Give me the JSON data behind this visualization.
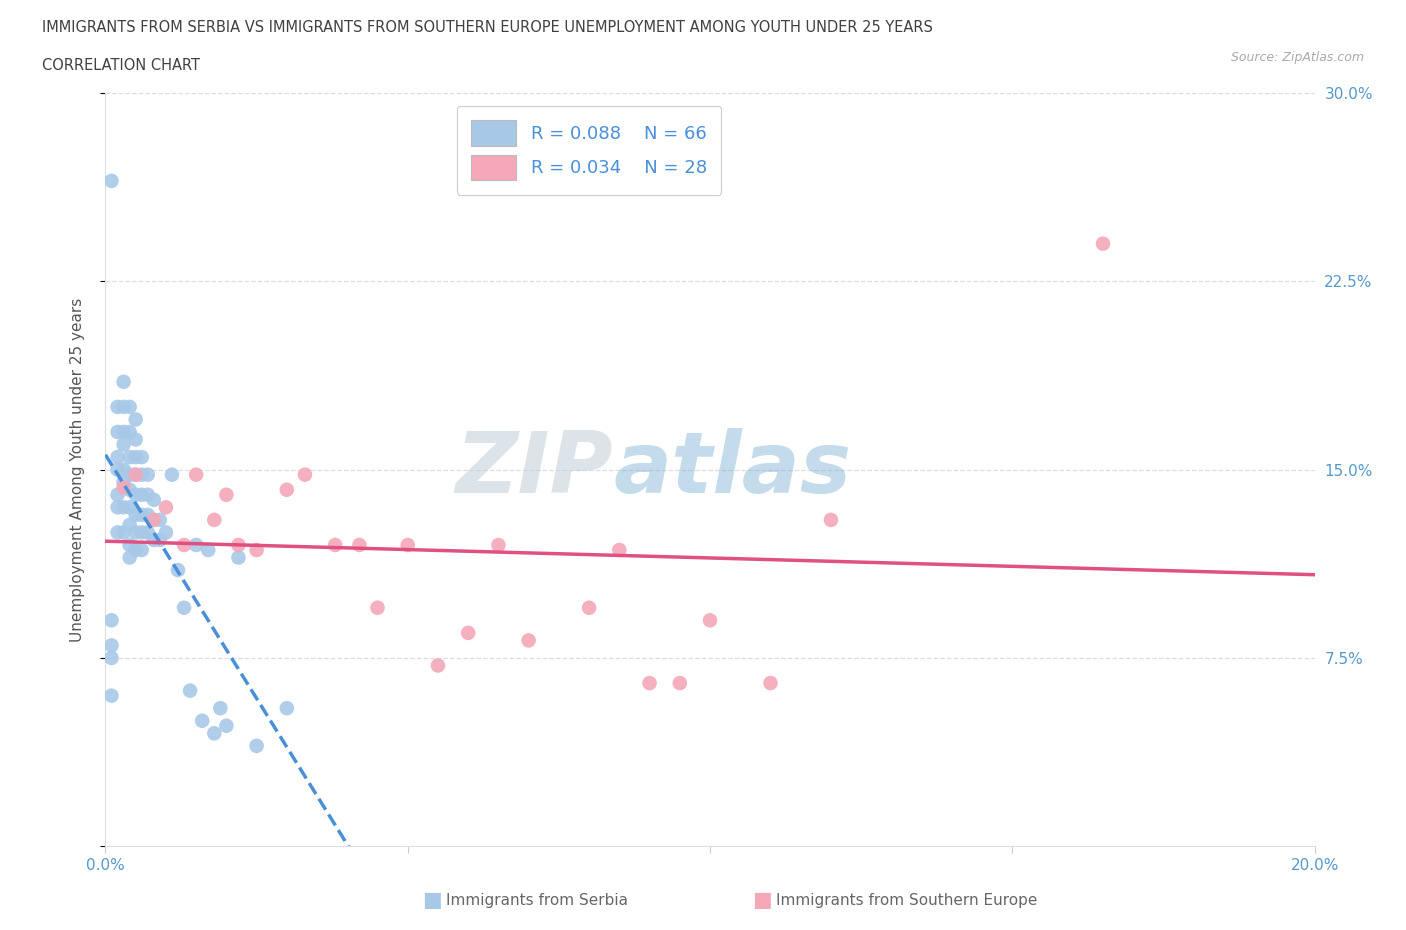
{
  "title_line1": "IMMIGRANTS FROM SERBIA VS IMMIGRANTS FROM SOUTHERN EUROPE UNEMPLOYMENT AMONG YOUTH UNDER 25 YEARS",
  "title_line2": "CORRELATION CHART",
  "source_text": "Source: ZipAtlas.com",
  "ylabel": "Unemployment Among Youth under 25 years",
  "xlim": [
    0.0,
    0.2
  ],
  "ylim": [
    0.0,
    0.3
  ],
  "yticks": [
    0.0,
    0.075,
    0.15,
    0.225,
    0.3
  ],
  "xticks": [
    0.0,
    0.05,
    0.1,
    0.15,
    0.2
  ],
  "serbia_R": "0.088",
  "serbia_N": "66",
  "southern_R": "0.034",
  "southern_N": "28",
  "serbia_color": "#a8c8e8",
  "southern_color": "#f4a8b8",
  "serbia_line_color": "#4a90d9",
  "southern_line_color": "#e05080",
  "serbia_x": [
    0.001,
    0.001,
    0.001,
    0.001,
    0.001,
    0.002,
    0.002,
    0.002,
    0.002,
    0.002,
    0.002,
    0.002,
    0.003,
    0.003,
    0.003,
    0.003,
    0.003,
    0.003,
    0.003,
    0.003,
    0.004,
    0.004,
    0.004,
    0.004,
    0.004,
    0.004,
    0.004,
    0.004,
    0.004,
    0.005,
    0.005,
    0.005,
    0.005,
    0.005,
    0.005,
    0.005,
    0.005,
    0.006,
    0.006,
    0.006,
    0.006,
    0.006,
    0.006,
    0.007,
    0.007,
    0.007,
    0.007,
    0.008,
    0.008,
    0.008,
    0.009,
    0.009,
    0.01,
    0.011,
    0.012,
    0.013,
    0.014,
    0.015,
    0.016,
    0.017,
    0.018,
    0.019,
    0.02,
    0.022,
    0.025,
    0.03
  ],
  "serbia_y": [
    0.265,
    0.09,
    0.08,
    0.075,
    0.06,
    0.175,
    0.165,
    0.155,
    0.15,
    0.14,
    0.135,
    0.125,
    0.185,
    0.175,
    0.165,
    0.16,
    0.15,
    0.145,
    0.135,
    0.125,
    0.175,
    0.165,
    0.155,
    0.148,
    0.142,
    0.135,
    0.128,
    0.12,
    0.115,
    0.17,
    0.162,
    0.155,
    0.148,
    0.14,
    0.132,
    0.125,
    0.118,
    0.155,
    0.148,
    0.14,
    0.132,
    0.125,
    0.118,
    0.148,
    0.14,
    0.132,
    0.125,
    0.138,
    0.13,
    0.122,
    0.13,
    0.122,
    0.125,
    0.148,
    0.11,
    0.095,
    0.062,
    0.12,
    0.05,
    0.118,
    0.045,
    0.055,
    0.048,
    0.115,
    0.04,
    0.055
  ],
  "southern_x": [
    0.003,
    0.005,
    0.008,
    0.01,
    0.013,
    0.015,
    0.018,
    0.02,
    0.022,
    0.025,
    0.03,
    0.033,
    0.038,
    0.042,
    0.045,
    0.05,
    0.055,
    0.06,
    0.065,
    0.07,
    0.08,
    0.085,
    0.09,
    0.095,
    0.1,
    0.11,
    0.12,
    0.165
  ],
  "southern_y": [
    0.143,
    0.148,
    0.13,
    0.135,
    0.12,
    0.148,
    0.13,
    0.14,
    0.12,
    0.118,
    0.142,
    0.148,
    0.12,
    0.12,
    0.095,
    0.12,
    0.072,
    0.085,
    0.12,
    0.082,
    0.095,
    0.118,
    0.065,
    0.065,
    0.09,
    0.065,
    0.13,
    0.24
  ]
}
